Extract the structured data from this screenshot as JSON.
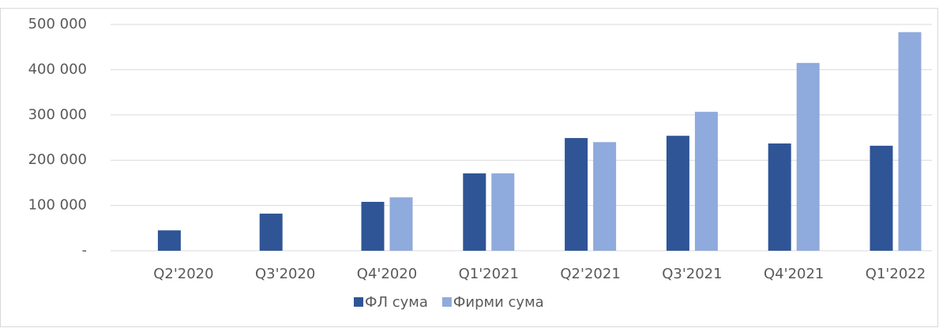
{
  "chart_data": {
    "type": "bar",
    "categories": [
      "Q2'2020",
      "Q3'2020",
      "Q4'2020",
      "Q1'2021",
      "Q2'2021",
      "Q3'2021",
      "Q4'2021",
      "Q1'2022"
    ],
    "series": [
      {
        "name": "ФЛ сума",
        "color": "#2f5597",
        "values": [
          45000,
          82000,
          108000,
          171000,
          249000,
          254000,
          237000,
          232000
        ]
      },
      {
        "name": "Фирми сума",
        "color": "#8faadc",
        "values": [
          0,
          0,
          118000,
          171000,
          240000,
          307000,
          415000,
          483000
        ]
      }
    ],
    "ylim": [
      0,
      500000
    ],
    "yticks": [
      {
        "value": 0,
        "label": "-"
      },
      {
        "value": 100000,
        "label": "100 000"
      },
      {
        "value": 200000,
        "label": "200 000"
      },
      {
        "value": 300000,
        "label": "300 000"
      },
      {
        "value": 400000,
        "label": "400 000"
      },
      {
        "value": 500000,
        "label": "500 000"
      }
    ],
    "grid": true,
    "legend": "bottom"
  }
}
